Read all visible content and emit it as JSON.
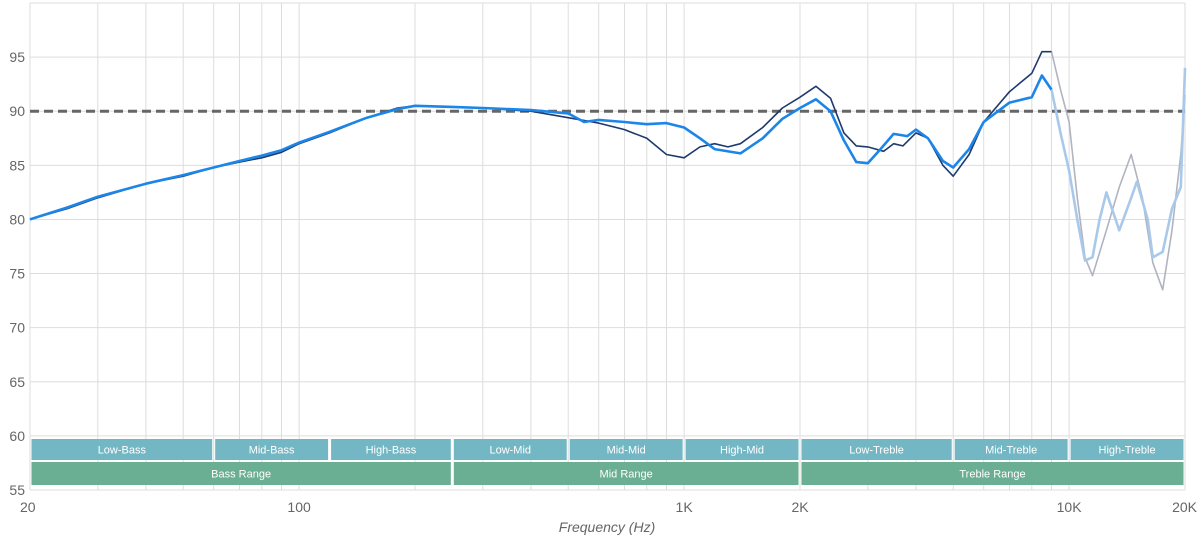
{
  "chart_data": {
    "type": "line",
    "xlabel": "Frequency (Hz)",
    "ylabel": "",
    "xscale": "log",
    "xlim": [
      20,
      20000
    ],
    "ylim": [
      55,
      100
    ],
    "grid": true,
    "x_ticks": [
      {
        "value": 20,
        "label": "20"
      },
      {
        "value": 100,
        "label": "100"
      },
      {
        "value": 1000,
        "label": "1K"
      },
      {
        "value": 2000,
        "label": "2K"
      },
      {
        "value": 10000,
        "label": "10K"
      },
      {
        "value": 20000,
        "label": "20K"
      }
    ],
    "y_ticks": [
      {
        "value": 55,
        "label": "55"
      },
      {
        "value": 60,
        "label": "60"
      },
      {
        "value": 65,
        "label": "65"
      },
      {
        "value": 70,
        "label": "70"
      },
      {
        "value": 75,
        "label": "75"
      },
      {
        "value": 80,
        "label": "80"
      },
      {
        "value": 85,
        "label": "85"
      },
      {
        "value": 90,
        "label": "90"
      },
      {
        "value": 95,
        "label": "95"
      }
    ],
    "reference_line": {
      "y": 90,
      "style": "dashed",
      "color": "#666666"
    },
    "series": [
      {
        "color": "#1e3a6e",
        "highfreq_color": "#b0b4c0",
        "fade_after": 9000,
        "points": [
          [
            20,
            80
          ],
          [
            25,
            81
          ],
          [
            30,
            82
          ],
          [
            40,
            83.3
          ],
          [
            50,
            84
          ],
          [
            60,
            84.8
          ],
          [
            70,
            85.3
          ],
          [
            80,
            85.7
          ],
          [
            90,
            86.2
          ],
          [
            100,
            87
          ],
          [
            120,
            88
          ],
          [
            150,
            89.4
          ],
          [
            180,
            90.3
          ],
          [
            200,
            90.5
          ],
          [
            250,
            90.4
          ],
          [
            300,
            90.3
          ],
          [
            400,
            90
          ],
          [
            500,
            89.4
          ],
          [
            600,
            88.9
          ],
          [
            700,
            88.3
          ],
          [
            800,
            87.5
          ],
          [
            900,
            86
          ],
          [
            1000,
            85.7
          ],
          [
            1100,
            86.7
          ],
          [
            1200,
            87
          ],
          [
            1300,
            86.7
          ],
          [
            1400,
            87
          ],
          [
            1600,
            88.5
          ],
          [
            1800,
            90.3
          ],
          [
            2000,
            91.3
          ],
          [
            2200,
            92.3
          ],
          [
            2400,
            91.2
          ],
          [
            2600,
            88
          ],
          [
            2800,
            86.8
          ],
          [
            3000,
            86.7
          ],
          [
            3300,
            86.3
          ],
          [
            3500,
            87
          ],
          [
            3700,
            86.8
          ],
          [
            4000,
            88
          ],
          [
            4300,
            87.5
          ],
          [
            4700,
            85
          ],
          [
            5000,
            84
          ],
          [
            5500,
            86
          ],
          [
            6000,
            89
          ],
          [
            7000,
            91.8
          ],
          [
            8000,
            93.5
          ],
          [
            8500,
            95.5
          ],
          [
            9000,
            95.5
          ],
          [
            9500,
            92
          ],
          [
            10000,
            89
          ],
          [
            10500,
            82
          ],
          [
            11000,
            76.5
          ],
          [
            11500,
            74.8
          ],
          [
            12500,
            79
          ],
          [
            13500,
            83
          ],
          [
            14500,
            86
          ],
          [
            15500,
            82
          ],
          [
            16500,
            76
          ],
          [
            17500,
            73.5
          ],
          [
            18500,
            79
          ],
          [
            19500,
            86
          ],
          [
            20000,
            91.5
          ]
        ]
      },
      {
        "color": "#1c86e8",
        "highfreq_color": "#a9c9ea",
        "fade_after": 9000,
        "points": [
          [
            20,
            80
          ],
          [
            25,
            81.1
          ],
          [
            30,
            82.1
          ],
          [
            40,
            83.3
          ],
          [
            50,
            84.1
          ],
          [
            60,
            84.8
          ],
          [
            70,
            85.4
          ],
          [
            80,
            85.9
          ],
          [
            90,
            86.4
          ],
          [
            100,
            87.1
          ],
          [
            120,
            88.1
          ],
          [
            150,
            89.4
          ],
          [
            180,
            90.2
          ],
          [
            200,
            90.5
          ],
          [
            250,
            90.4
          ],
          [
            300,
            90.3
          ],
          [
            400,
            90.1
          ],
          [
            500,
            89.8
          ],
          [
            550,
            89
          ],
          [
            600,
            89.2
          ],
          [
            700,
            89
          ],
          [
            800,
            88.8
          ],
          [
            900,
            88.9
          ],
          [
            1000,
            88.5
          ],
          [
            1100,
            87.5
          ],
          [
            1200,
            86.5
          ],
          [
            1400,
            86.1
          ],
          [
            1600,
            87.5
          ],
          [
            1800,
            89.3
          ],
          [
            2000,
            90.3
          ],
          [
            2200,
            91.1
          ],
          [
            2400,
            90
          ],
          [
            2600,
            87.3
          ],
          [
            2800,
            85.3
          ],
          [
            3000,
            85.2
          ],
          [
            3200,
            86.3
          ],
          [
            3500,
            87.9
          ],
          [
            3800,
            87.7
          ],
          [
            4000,
            88.3
          ],
          [
            4300,
            87.5
          ],
          [
            4700,
            85.4
          ],
          [
            5000,
            84.8
          ],
          [
            5500,
            86.5
          ],
          [
            6000,
            89
          ],
          [
            7000,
            90.8
          ],
          [
            8000,
            91.3
          ],
          [
            8500,
            93.3
          ],
          [
            9000,
            92
          ],
          [
            9500,
            88
          ],
          [
            10000,
            84.5
          ],
          [
            10500,
            80
          ],
          [
            11000,
            76.2
          ],
          [
            11500,
            76.5
          ],
          [
            12000,
            80
          ],
          [
            12500,
            82.5
          ],
          [
            13500,
            79
          ],
          [
            14500,
            82
          ],
          [
            15000,
            83.5
          ],
          [
            16000,
            80
          ],
          [
            16500,
            76.5
          ],
          [
            17500,
            77
          ],
          [
            18500,
            81
          ],
          [
            19500,
            83
          ],
          [
            20000,
            94
          ]
        ]
      }
    ],
    "bands": [
      {
        "label": "Low-Bass",
        "from": 20,
        "to": 60,
        "row": 1,
        "color": "#73b7c4"
      },
      {
        "label": "Mid-Bass",
        "from": 60,
        "to": 120,
        "row": 1,
        "color": "#73b7c4"
      },
      {
        "label": "High-Bass",
        "from": 120,
        "to": 250,
        "row": 1,
        "color": "#73b7c4"
      },
      {
        "label": "Low-Mid",
        "from": 250,
        "to": 500,
        "row": 1,
        "color": "#73b7c4"
      },
      {
        "label": "Mid-Mid",
        "from": 500,
        "to": 1000,
        "row": 1,
        "color": "#73b7c4"
      },
      {
        "label": "High-Mid",
        "from": 1000,
        "to": 2000,
        "row": 1,
        "color": "#73b7c4"
      },
      {
        "label": "Low-Treble",
        "from": 2000,
        "to": 5000,
        "row": 1,
        "color": "#73b7c4"
      },
      {
        "label": "Mid-Treble",
        "from": 5000,
        "to": 10000,
        "row": 1,
        "color": "#73b7c4"
      },
      {
        "label": "High-Treble",
        "from": 10000,
        "to": 20000,
        "row": 1,
        "color": "#73b7c4"
      },
      {
        "label": "Bass Range",
        "from": 20,
        "to": 250,
        "row": 2,
        "color": "#6aae93"
      },
      {
        "label": "Mid Range",
        "from": 250,
        "to": 2000,
        "row": 2,
        "color": "#6aae93"
      },
      {
        "label": "Treble Range",
        "from": 2000,
        "to": 20000,
        "row": 2,
        "color": "#6aae93"
      }
    ]
  }
}
